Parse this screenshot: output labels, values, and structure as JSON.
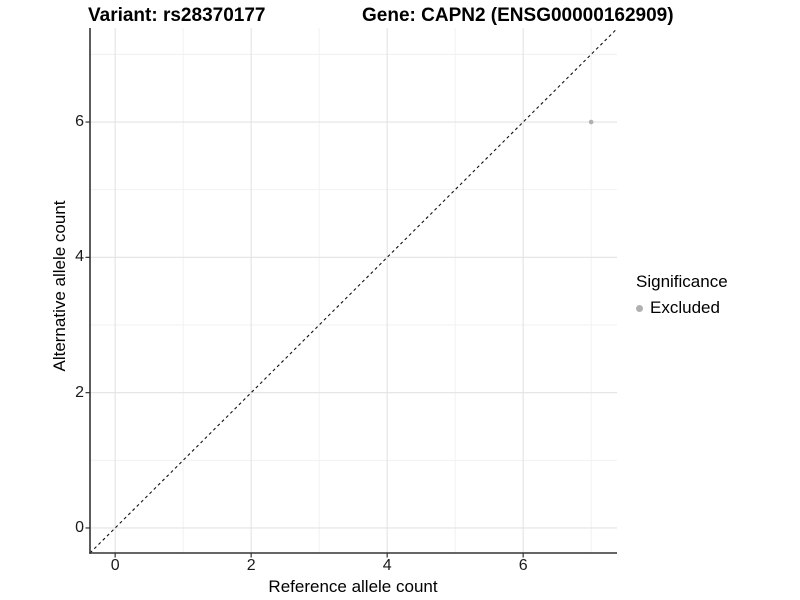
{
  "chart_data": {
    "type": "scatter",
    "title_left": "Variant: rs28370177",
    "title_right": "Gene: CAPN2 (ENSG00000162909)",
    "xlabel": "Reference allele count",
    "ylabel": "Alternative allele count",
    "xlim": [
      -0.37,
      7.38
    ],
    "ylim": [
      -0.37,
      7.39
    ],
    "x_major_ticks": [
      0,
      2,
      4,
      6
    ],
    "y_major_ticks": [
      0,
      2,
      4,
      6
    ],
    "x_minor_gridlines": [
      1,
      3,
      5,
      7
    ],
    "y_minor_gridlines": [
      1,
      3,
      5,
      7
    ],
    "grid": "major_and_minor",
    "points": [
      {
        "x": 7,
        "y": 6,
        "significance": "Excluded"
      }
    ],
    "identity_line": {
      "slope": 1,
      "intercept": 0,
      "style": "dashed"
    },
    "legend": {
      "title": "Significance",
      "position": "right",
      "items": [
        {
          "label": "Excluded",
          "color": "#b0b0b0"
        }
      ]
    }
  },
  "colors": {
    "background": "#ffffff",
    "grid_major": "#e3e3e3",
    "grid_minor": "#f0f0f0",
    "axis_line": "#333333",
    "tick_mark": "#333333",
    "tick_label": "#1a1a1a",
    "point": "#b0b0b0",
    "identity_line": "#111111"
  }
}
